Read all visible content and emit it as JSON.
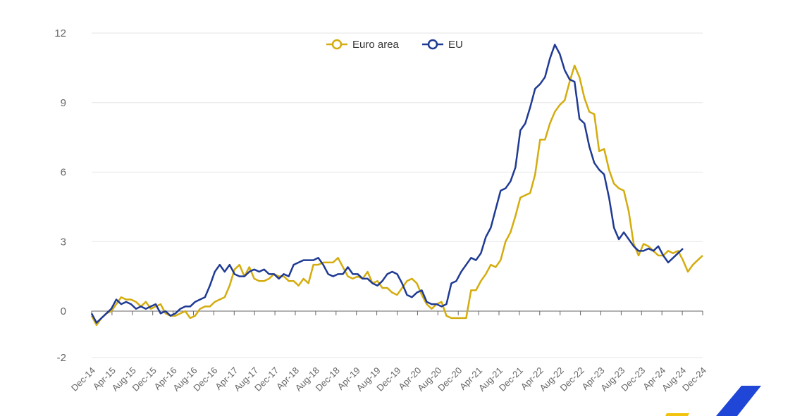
{
  "colors": {
    "euro_area": "#d4ac0d",
    "eu": "#1f3a93",
    "grid": "#e6e6e6",
    "axis_text": "#666666",
    "logo_blue": "#1f46d6",
    "logo_yellow": "#f2c40f"
  },
  "chart_data": {
    "type": "line",
    "title": "",
    "xlabel": "",
    "ylabel": "",
    "ylim": [
      -2,
      12
    ],
    "yticks": [
      -2,
      0,
      3,
      6,
      9,
      12
    ],
    "grid": true,
    "legend_placement": "top-center",
    "x_tick_labels": [
      "Dec-14",
      "Apr-15",
      "Aug-15",
      "Dec-15",
      "Apr-16",
      "Aug-16",
      "Dec-16",
      "Apr-17",
      "Aug-17",
      "Dec-17",
      "Apr-18",
      "Aug-18",
      "Dec-18",
      "Apr-19",
      "Aug-19",
      "Dec-19",
      "Apr-20",
      "Aug-20",
      "Dec-20",
      "Apr-21",
      "Aug-21",
      "Dec-21",
      "Apr-22",
      "Aug-22",
      "Dec-22",
      "Apr-23",
      "Aug-23",
      "Dec-23",
      "Apr-24",
      "Aug-24",
      "Dec-24"
    ],
    "x_start": "Dec-14",
    "x_end": "Dec-24",
    "series": [
      {
        "name": "Euro area",
        "values": [
          -0.2,
          -0.6,
          -0.3,
          -0.1,
          0.0,
          0.3,
          0.6,
          0.5,
          0.5,
          0.4,
          0.2,
          0.4,
          0.1,
          0.2,
          0.3,
          -0.1,
          -0.2,
          -0.2,
          -0.1,
          0.0,
          -0.3,
          -0.2,
          0.1,
          0.2,
          0.2,
          0.4,
          0.5,
          0.6,
          1.1,
          1.8,
          2.0,
          1.5,
          1.9,
          1.4,
          1.3,
          1.3,
          1.4,
          1.6,
          1.5,
          1.5,
          1.3,
          1.3,
          1.1,
          1.4,
          1.2,
          2.0,
          2.0,
          2.1,
          2.1,
          2.1,
          2.3,
          1.9,
          1.5,
          1.4,
          1.5,
          1.4,
          1.7,
          1.2,
          1.3,
          1.0,
          1.0,
          0.8,
          0.7,
          1.0,
          1.3,
          1.4,
          1.2,
          0.7,
          0.3,
          0.1,
          0.3,
          0.4,
          -0.2,
          -0.3,
          -0.3,
          -0.3,
          -0.3,
          0.9,
          0.9,
          1.3,
          1.6,
          2.0,
          1.9,
          2.2,
          3.0,
          3.4,
          4.1,
          4.9,
          5.0,
          5.1,
          5.9,
          7.4,
          7.4,
          8.1,
          8.6,
          8.9,
          9.1,
          9.9,
          10.6,
          10.1,
          9.2,
          8.6,
          8.5,
          6.9,
          7.0,
          6.1,
          5.5,
          5.3,
          5.2,
          4.3,
          2.9,
          2.4,
          2.9,
          2.8,
          2.6,
          2.4,
          2.4,
          2.6,
          2.5,
          2.6,
          2.2,
          1.7,
          2.0,
          2.2,
          2.4
        ],
        "color": "#d4ac0d"
      },
      {
        "name": "EU",
        "values": [
          -0.1,
          -0.5,
          -0.3,
          -0.1,
          0.1,
          0.5,
          0.3,
          0.4,
          0.3,
          0.1,
          0.2,
          0.1,
          0.2,
          0.3,
          -0.1,
          0.0,
          -0.2,
          -0.1,
          0.1,
          0.2,
          0.2,
          0.4,
          0.5,
          0.6,
          1.1,
          1.7,
          2.0,
          1.7,
          2.0,
          1.6,
          1.5,
          1.5,
          1.7,
          1.8,
          1.7,
          1.8,
          1.6,
          1.6,
          1.4,
          1.6,
          1.5,
          2.0,
          2.1,
          2.2,
          2.2,
          2.2,
          2.3,
          2.0,
          1.6,
          1.5,
          1.6,
          1.6,
          1.9,
          1.6,
          1.6,
          1.4,
          1.4,
          1.2,
          1.1,
          1.3,
          1.6,
          1.7,
          1.6,
          1.2,
          0.7,
          0.6,
          0.8,
          0.9,
          0.4,
          0.3,
          0.3,
          0.2,
          0.3,
          1.2,
          1.3,
          1.7,
          2.0,
          2.3,
          2.2,
          2.5,
          3.2,
          3.6,
          4.4,
          5.2,
          5.3,
          5.6,
          6.2,
          7.8,
          8.1,
          8.8,
          9.6,
          9.8,
          10.1,
          10.9,
          11.5,
          11.1,
          10.4,
          10.0,
          9.9,
          8.3,
          8.1,
          7.1,
          6.4,
          6.1,
          5.9,
          4.9,
          3.6,
          3.1,
          3.4,
          3.1,
          2.8,
          2.6,
          2.6,
          2.7,
          2.6,
          2.8,
          2.4,
          2.1,
          2.3,
          2.5,
          2.7
        ],
        "color": "#1f3a93"
      }
    ]
  }
}
